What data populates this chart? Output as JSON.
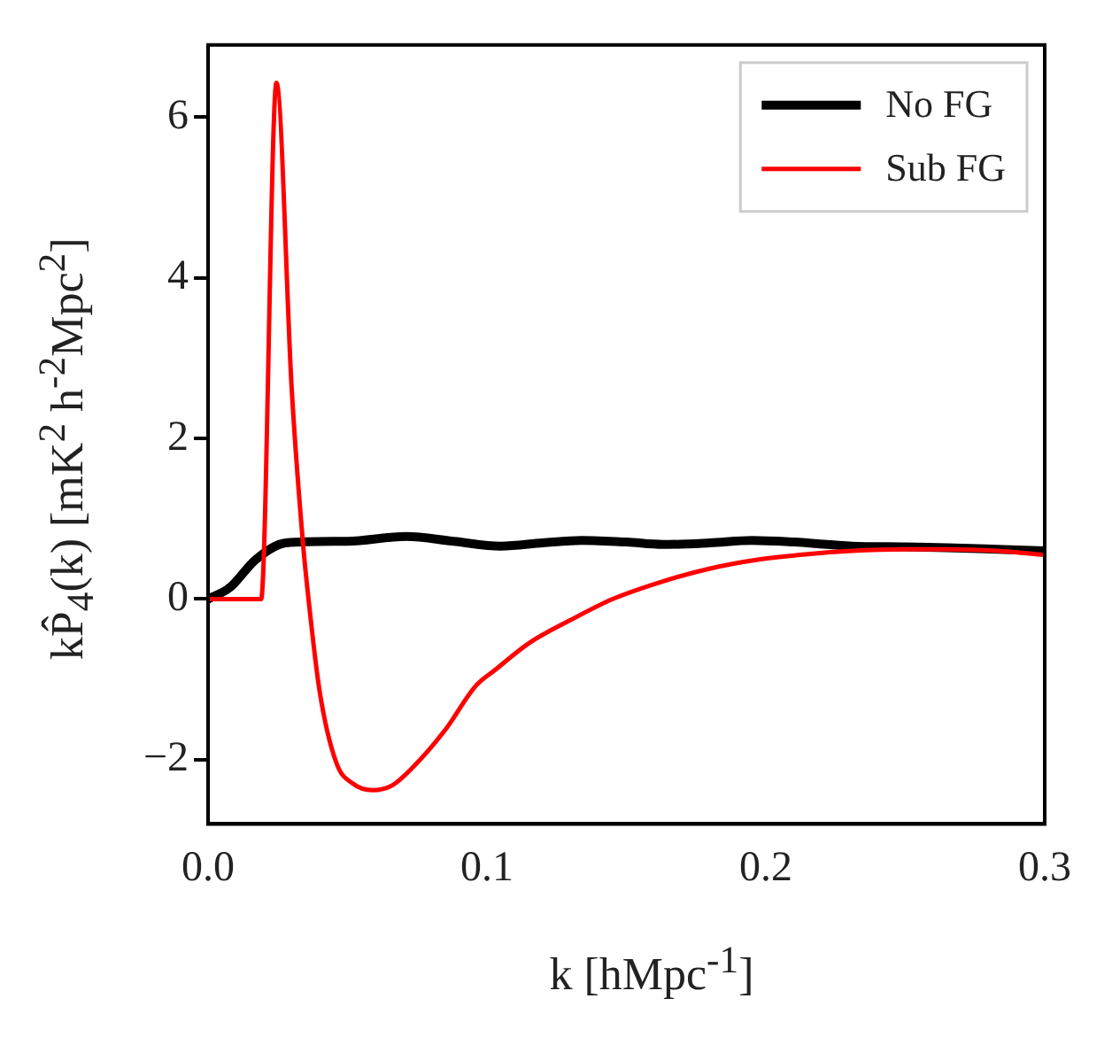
{
  "chart_data": {
    "type": "line",
    "xlabel": "k [hMpc$^{-1}$]",
    "ylabel": "kP̂$_{4}$(k) [mK$^{2}$ h$^{-2}$Mpc$^{2}$]",
    "xlim": [
      0,
      0.3
    ],
    "xticks": [
      {
        "value": 0,
        "label": "0.0"
      },
      0.1,
      0.2,
      0.3
    ],
    "ylim": [
      -2.8,
      6.9
    ],
    "yticks": [
      -2,
      0,
      2,
      4,
      6
    ],
    "grid": false,
    "legend": "top right",
    "marker": "none",
    "line_style": "solid",
    "series": [
      {
        "name": "No FG",
        "color": "#000000",
        "x": [
          0,
          0.008,
          0.017,
          0.028,
          0.05,
          0.071,
          0.088,
          0.105,
          0.12,
          0.134,
          0.15,
          0.163,
          0.18,
          0.195,
          0.21,
          0.231,
          0.25,
          0.265,
          0.283,
          0.3
        ],
        "values": [
          0,
          0.15,
          0.49,
          0.7,
          0.72,
          0.78,
          0.72,
          0.66,
          0.7,
          0.73,
          0.71,
          0.68,
          0.7,
          0.73,
          0.71,
          0.66,
          0.65,
          0.64,
          0.62,
          0.6
        ]
      },
      {
        "name": "Sub FG",
        "color": "#ff0000",
        "x": [
          0,
          0.018,
          0.019,
          0.0245,
          0.03,
          0.034,
          0.036,
          0.04,
          0.046,
          0.052,
          0.059,
          0.066,
          0.073,
          0.085,
          0.096,
          0.103,
          0.115,
          0.13,
          0.145,
          0.163,
          0.18,
          0.197,
          0.215,
          0.231,
          0.25,
          0.265,
          0.283,
          0.3
        ],
        "values": [
          0,
          0,
          0,
          6.43,
          2.6,
          0.7,
          0,
          -1.15,
          -2.04,
          -2.3,
          -2.38,
          -2.32,
          -2.11,
          -1.63,
          -1.08,
          -0.88,
          -0.55,
          -0.26,
          0,
          0.22,
          0.38,
          0.49,
          0.56,
          0.6,
          0.62,
          0.62,
          0.6,
          0.55
        ]
      }
    ]
  }
}
